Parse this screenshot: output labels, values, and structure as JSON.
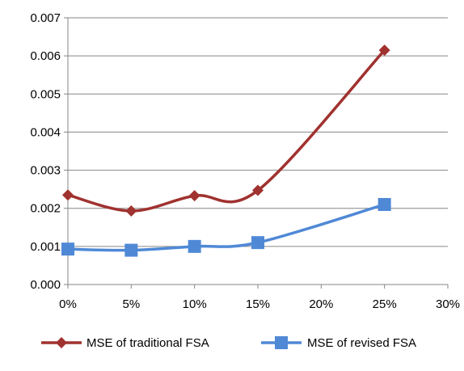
{
  "chart_data": {
    "type": "line",
    "title": "",
    "xlabel": "",
    "ylabel": "",
    "x": [
      0,
      5,
      10,
      15,
      25
    ],
    "x_unit": "%",
    "xlim": [
      0,
      30
    ],
    "x_ticks": [
      "0%",
      "5%",
      "10%",
      "15%",
      "20%",
      "25%",
      "30%"
    ],
    "ylim": [
      0,
      0.007
    ],
    "y_ticks": [
      "0.000",
      "0.001",
      "0.002",
      "0.003",
      "0.004",
      "0.005",
      "0.006",
      "0.007"
    ],
    "grid": "horizontal",
    "legend_position": "bottom",
    "series": [
      {
        "name": "MSE of traditional FSA",
        "values": [
          0.00235,
          0.00193,
          0.00233,
          0.00247,
          0.00615
        ],
        "color": "#A0322F",
        "marker": "diamond"
      },
      {
        "name": "MSE of revised FSA",
        "values": [
          0.00093,
          0.0009,
          0.001,
          0.0011,
          0.0021
        ],
        "color": "#4F89D6",
        "marker": "square"
      }
    ]
  }
}
